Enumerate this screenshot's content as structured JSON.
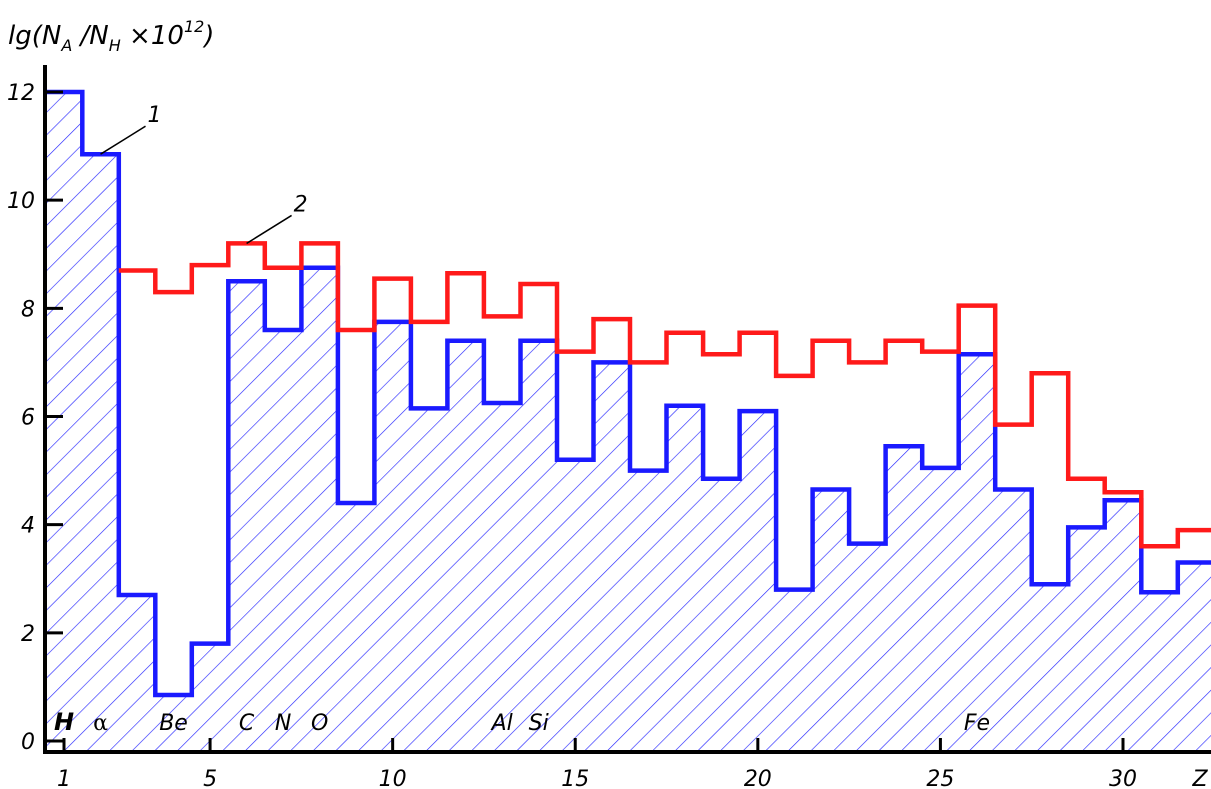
{
  "chart_data": {
    "type": "line",
    "step": true,
    "ylabel": {
      "base": "lg(N",
      "sub_a": "A",
      "mid": " /N",
      "sub_h": "H",
      "tail": " ×10",
      "sup": "12",
      "close": ")"
    },
    "xlabel": "Z",
    "xlim": [
      0.5,
      32.5
    ],
    "ylim": [
      0,
      12.5
    ],
    "x_ticks": [
      1,
      5,
      10,
      15,
      20,
      25,
      30
    ],
    "y_ticks": [
      0,
      2,
      4,
      6,
      8,
      10,
      12
    ],
    "hatched_series": "1",
    "series": [
      {
        "name": "1",
        "color": "#1a1aff",
        "x": [
          1,
          2,
          3,
          4,
          5,
          6,
          7,
          8,
          9,
          10,
          11,
          12,
          13,
          14,
          15,
          16,
          17,
          18,
          19,
          20,
          21,
          22,
          23,
          24,
          25,
          26,
          27,
          28,
          29,
          30,
          31,
          32
        ],
        "values": [
          12.0,
          10.85,
          2.7,
          0.85,
          1.8,
          8.5,
          7.6,
          8.75,
          4.4,
          7.75,
          6.15,
          7.4,
          6.25,
          7.4,
          5.2,
          7.0,
          5.0,
          6.2,
          4.85,
          6.1,
          2.8,
          4.65,
          3.65,
          5.45,
          5.05,
          7.15,
          4.65,
          2.9,
          3.95,
          4.45,
          2.75,
          3.3
        ]
      },
      {
        "name": "2",
        "color": "#ff1a1a",
        "x": [
          3,
          4,
          5,
          6,
          7,
          8,
          9,
          10,
          11,
          12,
          13,
          14,
          15,
          16,
          17,
          18,
          19,
          20,
          21,
          22,
          23,
          24,
          25,
          26,
          27,
          28,
          29,
          30,
          31,
          32
        ],
        "values": [
          8.7,
          8.3,
          8.8,
          9.2,
          8.75,
          9.2,
          7.6,
          8.55,
          7.75,
          8.65,
          7.85,
          8.45,
          7.2,
          7.8,
          7.0,
          7.55,
          7.15,
          7.55,
          6.75,
          7.4,
          7.0,
          7.4,
          7.2,
          8.05,
          5.85,
          6.8,
          4.85,
          4.6,
          3.6,
          3.9
        ]
      }
    ],
    "element_labels": [
      {
        "text": "H",
        "z": 1,
        "style": "bold"
      },
      {
        "text": "α",
        "z": 2,
        "style": "greek"
      },
      {
        "text": "Be",
        "z": 4
      },
      {
        "text": "C",
        "z": 6
      },
      {
        "text": "N",
        "z": 7
      },
      {
        "text": "O",
        "z": 8
      },
      {
        "text": "Al",
        "z": 13
      },
      {
        "text": "Si",
        "z": 14
      },
      {
        "text": "Fe",
        "z": 26
      }
    ],
    "annotations": [
      {
        "text": "1",
        "series": "1",
        "z": 2
      },
      {
        "text": "2",
        "series": "2",
        "z": 6
      }
    ]
  }
}
